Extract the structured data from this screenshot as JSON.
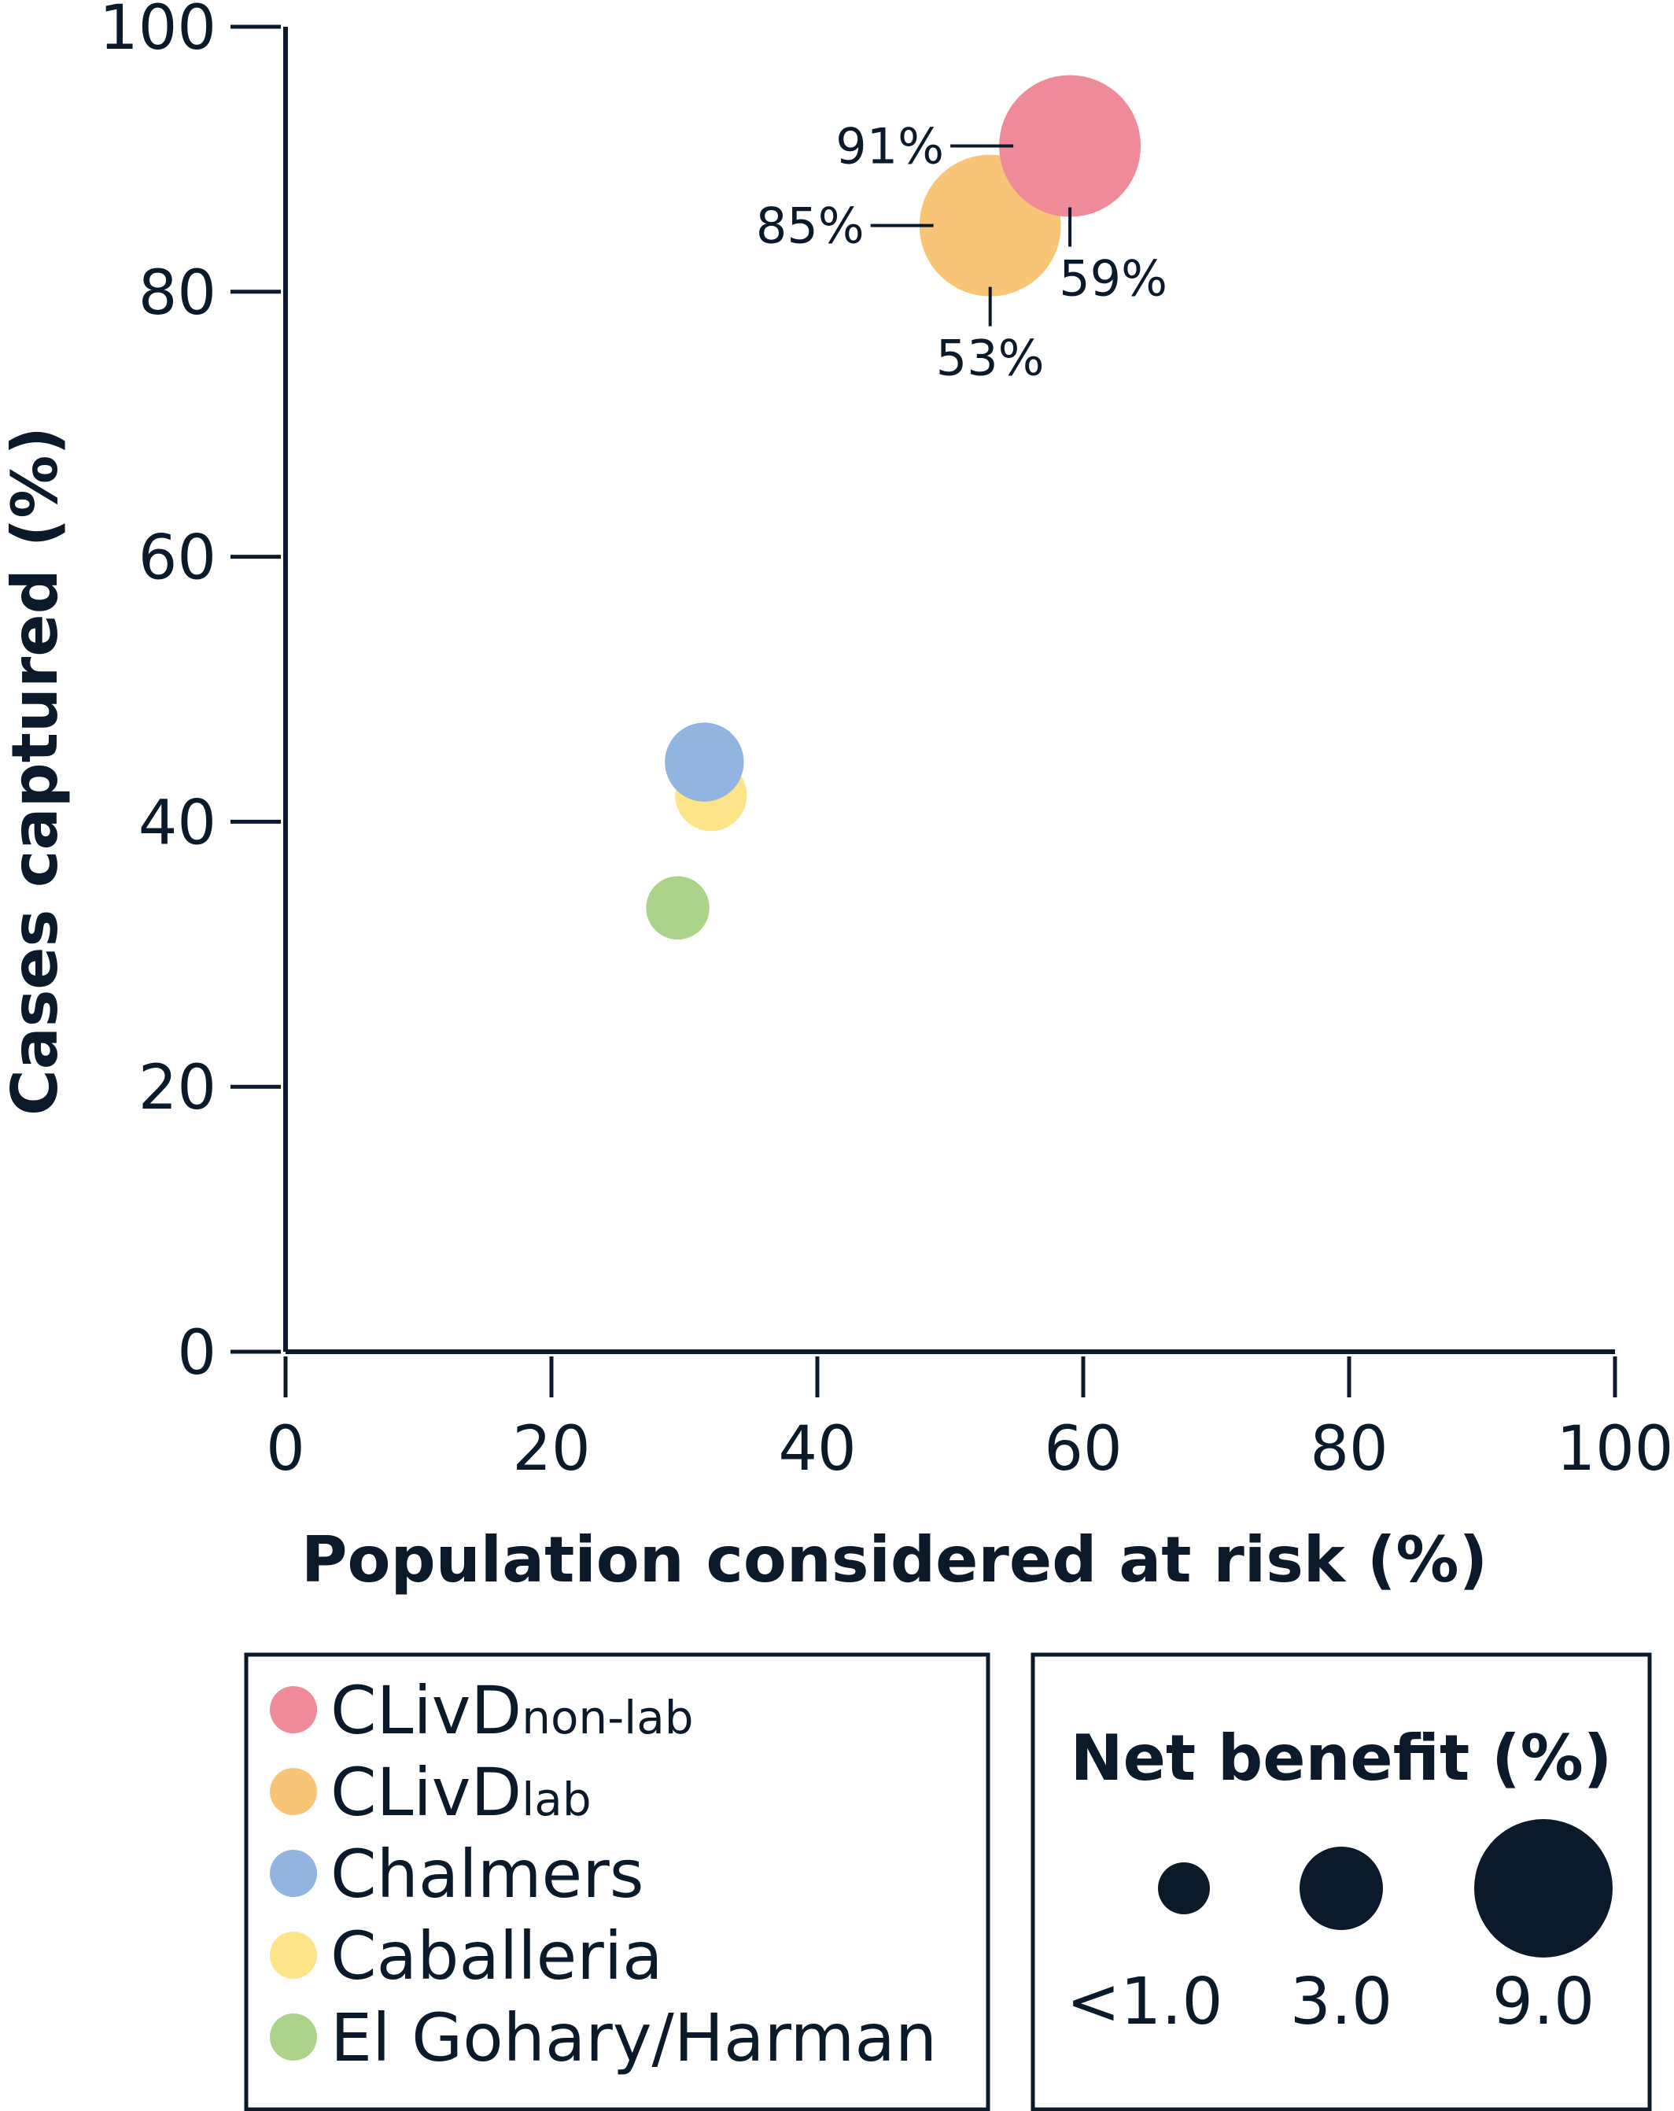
{
  "chart_data": {
    "type": "scatter",
    "xlabel": "Population considered at risk (%)",
    "ylabel": "Cases captured (%)",
    "xlim": [
      0,
      100
    ],
    "ylim": [
      0,
      100
    ],
    "xticks": [
      "0",
      "20",
      "40",
      "60",
      "80",
      "100"
    ],
    "yticks": [
      "0",
      "20",
      "40",
      "60",
      "80",
      "100"
    ],
    "series": [
      {
        "name": "CLivD",
        "subscript": "non-lab",
        "color": "#ef8a98",
        "x": 59,
        "y": 91,
        "net_benefit": 9.0,
        "x_label": "59%",
        "y_label": "91%"
      },
      {
        "name": "CLivD",
        "subscript": "lab",
        "color": "#f8c576",
        "x": 53,
        "y": 85,
        "net_benefit": 9.0,
        "x_label": "53%",
        "y_label": "85%"
      },
      {
        "name": "Caballeria",
        "subscript": "",
        "color": "#fde488",
        "x": 32,
        "y": 42,
        "net_benefit": 2.3
      },
      {
        "name": "Chalmers",
        "subscript": "",
        "color": "#92b4e0",
        "x": 31.5,
        "y": 44.5,
        "net_benefit": 2.8
      },
      {
        "name": "El Gohary/Harman",
        "subscript": "",
        "color": "#acd38a",
        "x": 29.5,
        "y": 33.5,
        "net_benefit": 1.8
      }
    ],
    "legend": {
      "items": [
        {
          "name": "CLivD",
          "subscript": "non-lab",
          "color": "#ef8a98"
        },
        {
          "name": "CLivD",
          "subscript": "lab",
          "color": "#f8c576"
        },
        {
          "name": "Chalmers",
          "subscript": "",
          "color": "#92b4e0"
        },
        {
          "name": "Caballeria",
          "subscript": "",
          "color": "#fde488"
        },
        {
          "name": "El Gohary/Harman",
          "subscript": "",
          "color": "#acd38a"
        }
      ]
    },
    "size_legend": {
      "title": "Net benefit (%)",
      "color": "#0b1a2a",
      "entries": [
        {
          "label": "<1.0",
          "value": 1.0
        },
        {
          "label": "3.0",
          "value": 3.0
        },
        {
          "label": "9.0",
          "value": 9.0
        }
      ]
    }
  }
}
